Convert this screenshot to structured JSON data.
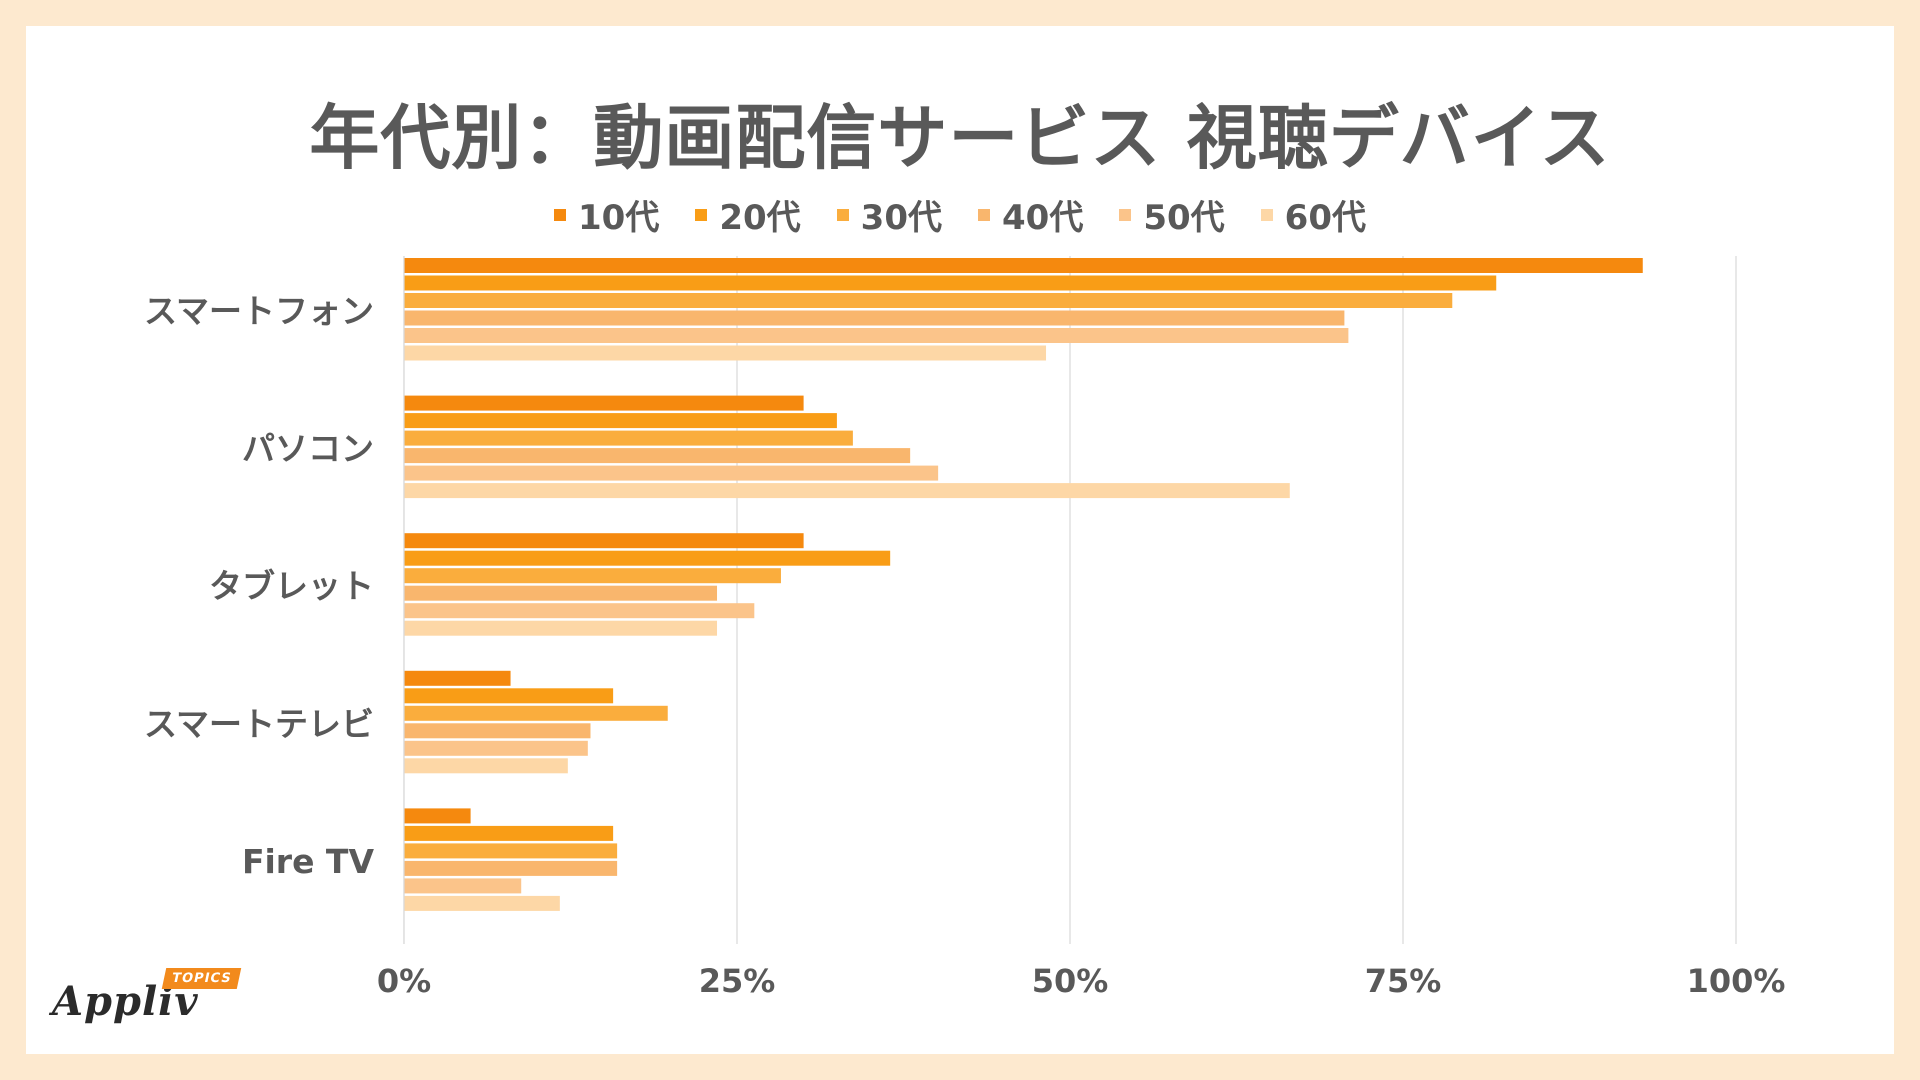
{
  "logo": {
    "wordmark": "Appliv",
    "badge": "TOPICS"
  },
  "chart_data": {
    "type": "bar",
    "orientation": "horizontal",
    "title": "年代別：動画配信サービス 視聴デバイス",
    "categories": [
      "スマートフォン",
      "パソコン",
      "タブレット",
      "スマートテレビ",
      "Fire TV"
    ],
    "series": [
      {
        "name": "10代",
        "color": "#f5890e",
        "values": [
          93,
          30,
          30,
          8,
          5
        ]
      },
      {
        "name": "20代",
        "color": "#f99d16",
        "values": [
          82,
          32.5,
          36.5,
          15.7,
          15.7
        ]
      },
      {
        "name": "30代",
        "color": "#faad3d",
        "values": [
          78.7,
          33.7,
          28.3,
          19.8,
          16
        ]
      },
      {
        "name": "40代",
        "color": "#f9b66d",
        "values": [
          70.6,
          38,
          23.5,
          14,
          16
        ]
      },
      {
        "name": "50代",
        "color": "#fbc48a",
        "values": [
          70.9,
          40.1,
          26.3,
          13.8,
          8.8
        ]
      },
      {
        "name": "60代",
        "color": "#fdd7a6",
        "values": [
          48.2,
          66.5,
          23.5,
          12.3,
          11.7
        ]
      }
    ],
    "xlim": [
      0,
      100
    ],
    "xticks": [
      0,
      25,
      50,
      75,
      100
    ],
    "tick_labels": [
      "0%",
      "25%",
      "50%",
      "75%",
      "100%"
    ],
    "grid": true,
    "legend_position": "top-center",
    "xlabel": "",
    "ylabel": ""
  }
}
